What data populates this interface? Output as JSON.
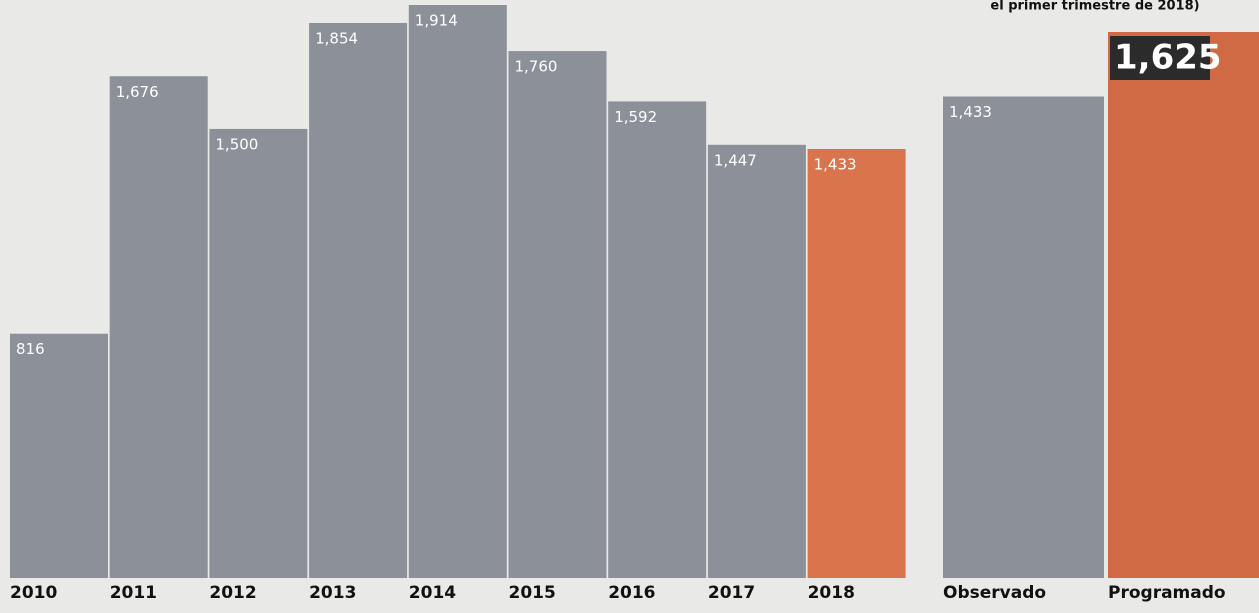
{
  "chart_data": [
    {
      "type": "bar",
      "categories": [
        "2010",
        "2011",
        "2012",
        "2013",
        "2014",
        "2015",
        "2016",
        "2017",
        "2018"
      ],
      "values": [
        816,
        1676,
        1500,
        1854,
        1914,
        1760,
        1592,
        1447,
        1433
      ],
      "value_labels": [
        "816",
        "1,676",
        "1,500",
        "1,854",
        "1,914",
        "1,760",
        "1,592",
        "1,447",
        "1,433"
      ],
      "colors": [
        "#8b9099",
        "#8b9099",
        "#8b9099",
        "#8b9099",
        "#8b9099",
        "#8b9099",
        "#8b9099",
        "#8b9099",
        "#d9744c"
      ]
    },
    {
      "type": "bar",
      "subtitle": "el primer trimestre de 2018)",
      "categories": [
        "Observado",
        "Programado"
      ],
      "values": [
        1433,
        1625
      ],
      "value_labels": [
        "1,433",
        "1,625"
      ],
      "colors": [
        "#8b9099",
        "#cf6a45"
      ]
    }
  ]
}
